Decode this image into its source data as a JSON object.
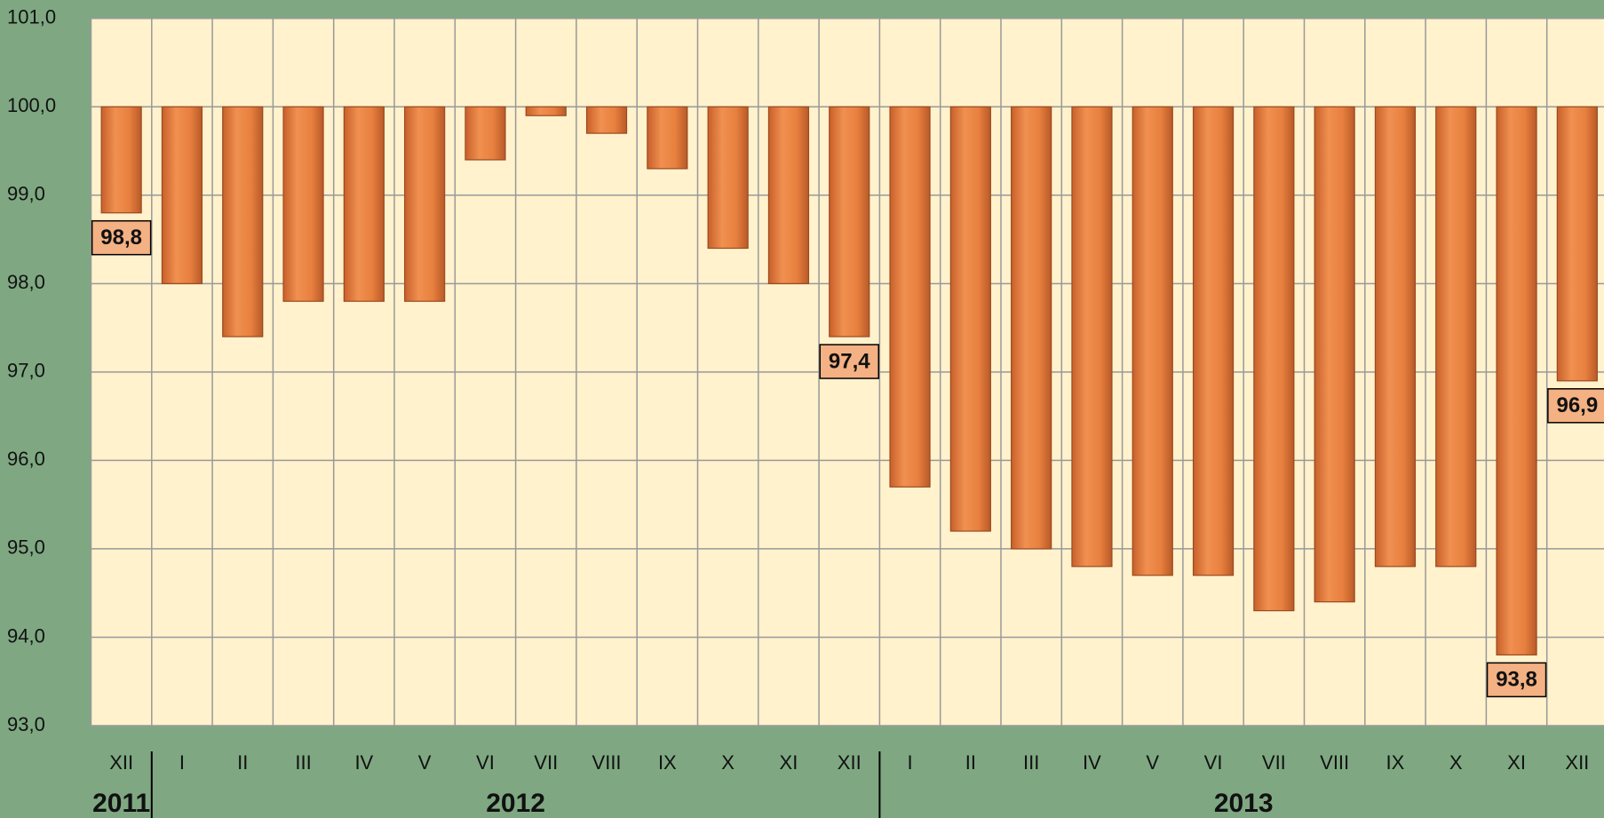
{
  "chart_data": {
    "type": "bar",
    "baseline": 100,
    "categories": [
      "XII",
      "I",
      "II",
      "III",
      "IV",
      "V",
      "VI",
      "VII",
      "VIII",
      "IX",
      "X",
      "XI",
      "XII",
      "I",
      "II",
      "III",
      "IV",
      "V",
      "VI",
      "VII",
      "VIII",
      "IX",
      "X",
      "XI",
      "XII"
    ],
    "groups": [
      {
        "label": "2011",
        "size": 1
      },
      {
        "label": "2012",
        "size": 12
      },
      {
        "label": "2013",
        "size": 12
      }
    ],
    "values": [
      98.8,
      98.0,
      97.4,
      97.8,
      97.8,
      97.8,
      99.4,
      99.9,
      99.7,
      99.3,
      98.4,
      98.0,
      97.4,
      95.7,
      95.2,
      95.0,
      94.8,
      94.7,
      94.7,
      94.3,
      94.4,
      94.8,
      94.8,
      93.8,
      96.9
    ],
    "value_labels": [
      "98,8",
      null,
      null,
      null,
      null,
      null,
      null,
      null,
      null,
      null,
      null,
      null,
      "97,4",
      null,
      null,
      null,
      null,
      null,
      null,
      null,
      null,
      null,
      null,
      "93,8",
      "96,9"
    ],
    "color": "#e8803f",
    "ylim": [
      93,
      101
    ],
    "yticks": [
      {
        "value": 93,
        "label": "93,0"
      },
      {
        "value": 94,
        "label": "94,0"
      },
      {
        "value": 95,
        "label": "95,0"
      },
      {
        "value": 96,
        "label": "96,0"
      },
      {
        "value": 97,
        "label": "97,0"
      },
      {
        "value": 98,
        "label": "98,0"
      },
      {
        "value": 99,
        "label": "99,0"
      },
      {
        "value": 100,
        "label": "100,0"
      },
      {
        "value": 101,
        "label": "101,0"
      }
    ],
    "grid": true
  }
}
